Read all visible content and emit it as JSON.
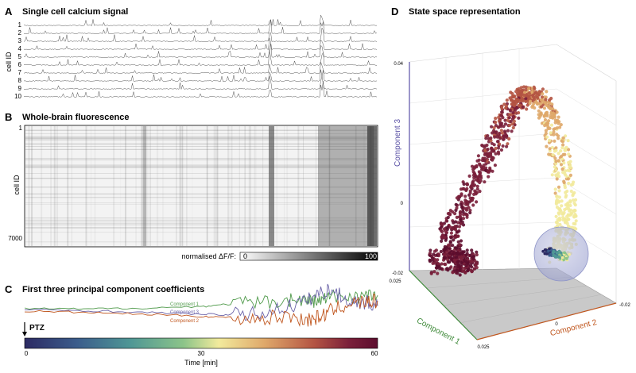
{
  "panels": {
    "A": {
      "letter": "A",
      "title": "Single cell calcium signal",
      "ylabel": "cell ID",
      "row_labels": [
        "1",
        "2",
        "3",
        "4",
        "5",
        "6",
        "7",
        "8",
        "9",
        "10"
      ]
    },
    "B": {
      "letter": "B",
      "title": "Whole-brain fluorescence",
      "ylabel": "cell ID",
      "ytick_top": "1",
      "ytick_bottom": "7000",
      "colorbar_label": "normalised ΔF/F:",
      "colorbar_min": "0",
      "colorbar_max": "100"
    },
    "C": {
      "letter": "C",
      "title": "First three principal component coefficients",
      "legend": [
        "Component 1",
        "Component 3",
        "Component 2"
      ],
      "marker_label": "PTZ",
      "xticks": [
        "0",
        "30",
        "60"
      ],
      "xlabel": "Time [min]"
    },
    "D": {
      "letter": "D",
      "title": "State space representation",
      "zlabel": "Component 3",
      "xlabel": "Component 1",
      "ylabel": "Component 2",
      "zticks": [
        "0.04",
        "0",
        "-0.02"
      ],
      "xticks": [
        "0.025",
        "0",
        "0.025"
      ],
      "yticks": [
        "-0.02"
      ]
    }
  },
  "colors": {
    "component1": "#4f9a4a",
    "component2": "#c0561e",
    "component3": "#6a62a8",
    "time_colormap": [
      "#2c2a63",
      "#3b5d8c",
      "#4f9795",
      "#8cc489",
      "#f2ea9c",
      "#dfa86a",
      "#b45443",
      "#7a1f3a",
      "#5c0d2e"
    ]
  },
  "chart_data": [
    {
      "type": "line",
      "title": "First three principal component coefficients",
      "xlabel": "Time [min]",
      "xlim": [
        0,
        60
      ],
      "series": [
        {
          "name": "Component 1",
          "x": [
            0,
            10,
            20,
            30,
            35,
            40,
            45,
            48,
            50,
            52,
            55,
            58,
            60
          ],
          "values": [
            0.1,
            0.08,
            0.12,
            0.18,
            0.28,
            0.32,
            0.45,
            0.42,
            0.4,
            0.55,
            0.58,
            0.6,
            0.62
          ]
        },
        {
          "name": "Component 3",
          "x": [
            0,
            10,
            20,
            30,
            35,
            40,
            45,
            48,
            50,
            52,
            55,
            58,
            60
          ],
          "values": [
            0.05,
            0.02,
            -0.05,
            -0.12,
            -0.15,
            -0.1,
            0.2,
            0.4,
            0.7,
            0.85,
            0.4,
            0.35,
            0.2
          ]
        },
        {
          "name": "Component 2",
          "x": [
            0,
            10,
            20,
            30,
            35,
            40,
            45,
            48,
            50,
            52,
            55,
            58,
            60
          ],
          "values": [
            0.0,
            -0.05,
            -0.12,
            -0.2,
            -0.25,
            -0.3,
            -0.2,
            -0.35,
            -0.25,
            0.0,
            0.3,
            0.35,
            0.4
          ]
        }
      ]
    }
  ]
}
